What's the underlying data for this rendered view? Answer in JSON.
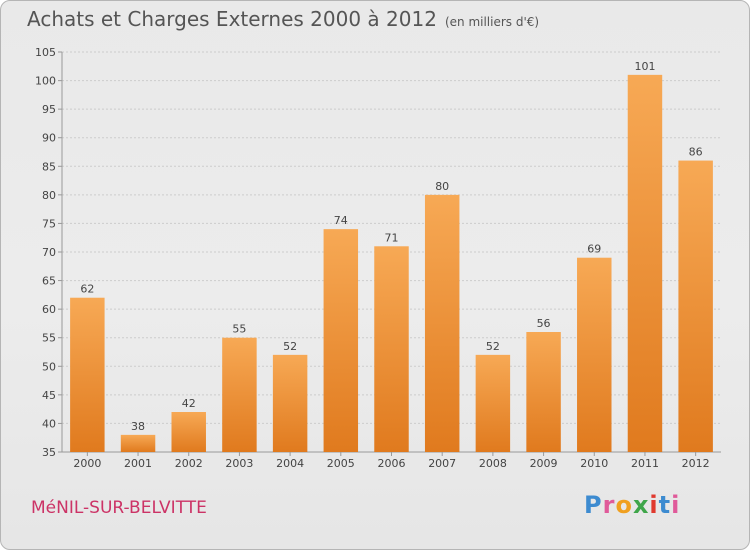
{
  "header": {
    "title": "Achats et Charges Externes 2000 à 2012",
    "unit": "(en milliers d'€)"
  },
  "footer": {
    "commune": "MéNIL-SUR-BELVITTE",
    "logo": "Proxiti"
  },
  "colors": {
    "bar_light": "#f7a955",
    "bar_dark": "#e07a1e",
    "grid": "#cccccc",
    "axis": "#999999",
    "text": "#444444",
    "commune": "#cc3366",
    "logo_letters": [
      "#3d8bd0",
      "#e05a9a",
      "#f0a020",
      "#3fa64a",
      "#e03a2f",
      "#3d8bd0",
      "#e05a9a"
    ]
  },
  "chart_data": {
    "type": "bar",
    "title": "Achats et Charges Externes 2000 à 2012",
    "subtitle": "(en milliers d'€)",
    "categories": [
      "2000",
      "2001",
      "2002",
      "2003",
      "2004",
      "2005",
      "2006",
      "2007",
      "2008",
      "2009",
      "2010",
      "2011",
      "2012"
    ],
    "values": [
      62,
      38,
      42,
      55,
      52,
      74,
      71,
      80,
      52,
      56,
      69,
      101,
      86
    ],
    "ylim": [
      35,
      105
    ],
    "yticks": [
      35,
      40,
      45,
      50,
      55,
      60,
      65,
      70,
      75,
      80,
      85,
      90,
      95,
      100,
      105
    ],
    "grid": true,
    "data_labels": true
  }
}
